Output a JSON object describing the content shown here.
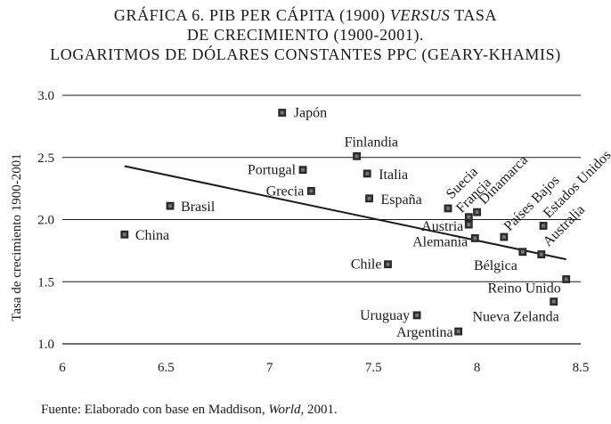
{
  "title": {
    "line1": "GRÁFICA 6. PIB PER CÁPITA (1900) ",
    "line1_em": "VERSUS",
    "line1_end": " TASA",
    "line2": "DE CRECIMIENTO (1900-2001).",
    "line3": "LOGARITMOS DE DÓLARES CONSTANTES PPC (GEARY-KHAMIS)"
  },
  "source": {
    "prefix": "Fuente: Elaborado con base en Maddison, ",
    "italic": "World",
    "suffix": ", 2001."
  },
  "chart_data": {
    "type": "scatter",
    "xlabel": "",
    "ylabel": "Tasa de crecimiento 1900-2001",
    "xlim": [
      6,
      8.5
    ],
    "ylim": [
      1.0,
      3.0
    ],
    "x_ticks": [
      "6",
      "6.5",
      "7",
      "7.5",
      "8",
      "8.5"
    ],
    "y_ticks": [
      "1.0",
      "1.5",
      "2.0",
      "2.5",
      "3.0"
    ],
    "grid": "horizontal",
    "trendline": {
      "x": [
        6.3,
        8.43
      ],
      "y": [
        2.43,
        1.68
      ]
    },
    "points": [
      {
        "label": "Japón",
        "x": 7.06,
        "y": 2.86
      },
      {
        "label": "Finlandia",
        "x": 7.42,
        "y": 2.51
      },
      {
        "label": "Portugal",
        "x": 7.16,
        "y": 2.4
      },
      {
        "label": "Italia",
        "x": 7.47,
        "y": 2.37
      },
      {
        "label": "Grecia",
        "x": 7.2,
        "y": 2.23
      },
      {
        "label": "España",
        "x": 7.48,
        "y": 2.17
      },
      {
        "label": "Brasil",
        "x": 6.52,
        "y": 2.11
      },
      {
        "label": "China",
        "x": 6.3,
        "y": 1.88
      },
      {
        "label": "Suecia",
        "x": 7.86,
        "y": 2.09
      },
      {
        "label": "Francia",
        "x": 7.96,
        "y": 2.02
      },
      {
        "label": "Dinamarca",
        "x": 8.0,
        "y": 2.06
      },
      {
        "label": "Austria",
        "x": 7.96,
        "y": 1.96
      },
      {
        "label": "Países Bajos",
        "x": 8.13,
        "y": 1.86
      },
      {
        "label": "Estados Unidos",
        "x": 8.32,
        "y": 1.95
      },
      {
        "label": "Alemania",
        "x": 7.99,
        "y": 1.85
      },
      {
        "label": "Australia",
        "x": 8.31,
        "y": 1.72
      },
      {
        "label": "Bélgica",
        "x": 8.22,
        "y": 1.74
      },
      {
        "label": "Chile",
        "x": 7.57,
        "y": 1.64
      },
      {
        "label": "Reino Unido",
        "x": 8.43,
        "y": 1.52
      },
      {
        "label": "Nueva Zelanda",
        "x": 8.37,
        "y": 1.34
      },
      {
        "label": "Uruguay",
        "x": 7.71,
        "y": 1.23
      },
      {
        "label": "Argentina",
        "x": 7.91,
        "y": 1.1
      }
    ]
  }
}
